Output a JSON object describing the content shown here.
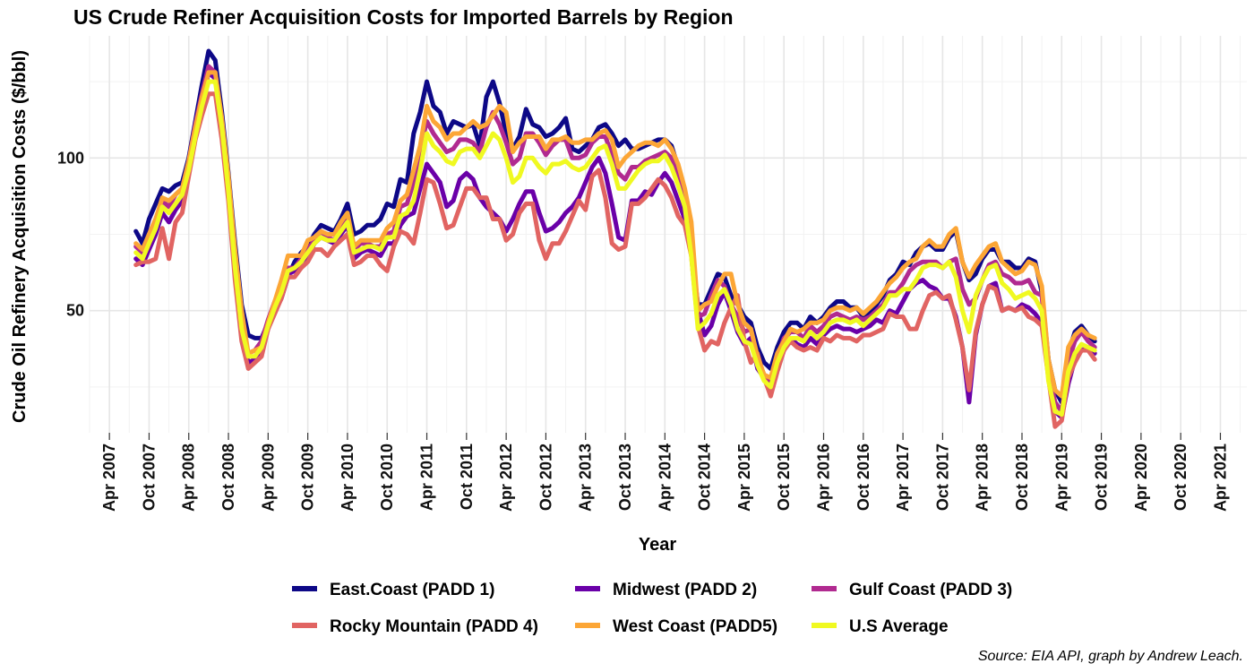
{
  "title": "US Crude Refiner Acquisition Costs for Imported Barrels by Region",
  "caption": "Source: EIA API, graph by Andrew Leach.",
  "chart_data": {
    "type": "line",
    "title": "US Crude Refiner Acquisition Costs for Imported Barrels by Region",
    "xlabel": "Year",
    "ylabel": "Crude Oil Refinery Acquisition Costs ($/bbl)",
    "x_ticks": [
      "Apr 2007",
      "Oct 2007",
      "Apr 2008",
      "Oct 2008",
      "Apr 2009",
      "Oct 2009",
      "Apr 2010",
      "Oct 2010",
      "Apr 2011",
      "Oct 2011",
      "Apr 2012",
      "Oct 2012",
      "Apr 2013",
      "Oct 2013",
      "Apr 2014",
      "Oct 2014",
      "Apr 2015",
      "Oct 2015",
      "Apr 2016",
      "Oct 2016",
      "Apr 2017",
      "Oct 2017",
      "Apr 2018",
      "Oct 2018",
      "Apr 2019",
      "Oct 2019",
      "Apr 2020",
      "Oct 2020",
      "Apr 2021"
    ],
    "y_ticks": [
      50,
      100
    ],
    "xlim": [
      "2007-01",
      "2021-08"
    ],
    "ylim": [
      10,
      140
    ],
    "grid": true,
    "legend_position": "bottom",
    "x_start": "2007-08",
    "x_step": "monthly",
    "series": [
      {
        "name": "East.Coast (PADD 1)",
        "color": "#0d0887",
        "values": [
          76,
          72,
          80,
          85,
          90,
          89,
          91,
          92,
          100,
          112,
          124,
          135,
          132,
          115,
          95,
          72,
          52,
          42,
          41,
          41,
          46,
          50,
          54,
          61,
          66,
          69,
          71,
          75,
          78,
          77,
          76,
          80,
          85,
          75,
          76,
          78,
          78,
          80,
          85,
          84,
          93,
          92,
          108,
          115,
          125,
          117,
          115,
          108,
          112,
          111,
          110,
          111,
          104,
          120,
          125,
          118,
          108,
          103,
          107,
          116,
          111,
          110,
          107,
          108,
          110,
          113,
          103,
          102,
          104,
          106,
          110,
          111,
          108,
          104,
          106,
          103,
          103,
          104,
          105,
          106,
          106,
          104,
          97,
          87,
          70,
          52,
          52,
          57,
          62,
          61,
          55,
          52,
          48,
          46,
          38,
          33,
          31,
          38,
          43,
          46,
          46,
          44,
          48,
          46,
          48,
          51,
          53,
          53,
          51,
          51,
          48,
          49,
          52,
          55,
          60,
          62,
          66,
          65,
          69,
          71,
          72,
          70,
          70,
          74,
          76,
          66,
          60,
          62,
          67,
          70,
          70,
          66,
          66,
          64,
          64,
          67,
          66,
          56,
          34,
          24,
          20,
          36,
          43,
          45,
          42,
          40
        ]
      },
      {
        "name": "Midwest (PADD 2)",
        "color": "#6a00a8",
        "values": [
          67,
          65,
          70,
          75,
          82,
          79,
          83,
          86,
          95,
          108,
          118,
          128,
          126,
          110,
          90,
          62,
          42,
          33,
          34,
          37,
          44,
          50,
          56,
          62,
          63,
          66,
          68,
          72,
          74,
          73,
          72,
          75,
          78,
          67,
          69,
          70,
          69,
          68,
          72,
          72,
          78,
          81,
          82,
          90,
          98,
          95,
          92,
          84,
          86,
          93,
          95,
          93,
          87,
          84,
          82,
          80,
          76,
          80,
          85,
          89,
          89,
          82,
          76,
          77,
          79,
          82,
          84,
          87,
          92,
          97,
          100,
          95,
          85,
          74,
          73,
          86,
          86,
          89,
          88,
          92,
          95,
          92,
          86,
          80,
          70,
          50,
          42,
          45,
          52,
          56,
          50,
          43,
          39,
          41,
          31,
          28,
          24,
          31,
          37,
          41,
          39,
          38,
          41,
          39,
          42,
          44,
          45,
          44,
          44,
          43,
          44,
          45,
          47,
          46,
          50,
          49,
          53,
          57,
          59,
          60,
          58,
          57,
          54,
          54,
          48,
          38,
          20,
          42,
          52,
          58,
          59,
          50,
          51,
          50,
          52,
          51,
          49,
          46,
          30,
          17,
          15,
          26,
          34,
          37,
          38,
          36
        ]
      },
      {
        "name": "Gulf Coast (PADD 3)",
        "color": "#b12a90",
        "values": [
          71,
          69,
          75,
          80,
          86,
          84,
          88,
          90,
          99,
          111,
          121,
          130,
          128,
          112,
          92,
          67,
          47,
          36,
          37,
          40,
          47,
          53,
          58,
          64,
          64,
          67,
          70,
          73,
          76,
          74,
          73,
          77,
          80,
          70,
          72,
          72,
          71,
          71,
          75,
          76,
          84,
          85,
          92,
          103,
          112,
          108,
          105,
          102,
          103,
          106,
          106,
          105,
          102,
          110,
          115,
          111,
          105,
          98,
          100,
          108,
          108,
          105,
          101,
          104,
          106,
          106,
          100,
          100,
          101,
          105,
          107,
          107,
          101,
          95,
          93,
          97,
          97,
          99,
          100,
          101,
          102,
          100,
          95,
          87,
          70,
          48,
          49,
          55,
          60,
          58,
          52,
          48,
          43,
          44,
          34,
          29,
          27,
          35,
          41,
          43,
          43,
          41,
          45,
          43,
          45,
          48,
          49,
          48,
          47,
          48,
          47,
          48,
          50,
          52,
          56,
          56,
          59,
          63,
          65,
          66,
          66,
          66,
          64,
          66,
          67,
          57,
          52,
          54,
          60,
          65,
          66,
          62,
          61,
          59,
          59,
          60,
          56,
          55,
          30,
          20,
          17,
          33,
          40,
          43,
          40,
          38
        ]
      },
      {
        "name": "Rocky Mountain (PADD 4)",
        "color": "#e16462",
        "values": [
          65,
          66,
          66,
          67,
          77,
          67,
          79,
          82,
          94,
          106,
          114,
          121,
          121,
          106,
          86,
          60,
          40,
          31,
          33,
          35,
          44,
          49,
          54,
          61,
          61,
          64,
          66,
          70,
          70,
          68,
          71,
          73,
          75,
          65,
          66,
          68,
          68,
          65,
          63,
          71,
          76,
          75,
          72,
          82,
          93,
          92,
          85,
          77,
          78,
          84,
          90,
          90,
          87,
          87,
          80,
          80,
          73,
          75,
          82,
          85,
          85,
          73,
          67,
          72,
          72,
          76,
          81,
          86,
          83,
          94,
          96,
          87,
          72,
          70,
          71,
          85,
          85,
          87,
          90,
          93,
          91,
          87,
          81,
          78,
          68,
          45,
          37,
          40,
          39,
          46,
          51,
          55,
          40,
          33,
          36,
          28,
          22,
          30,
          37,
          40,
          38,
          37,
          38,
          37,
          41,
          40,
          42,
          41,
          41,
          40,
          42,
          42,
          43,
          44,
          49,
          48,
          48,
          44,
          44,
          50,
          55,
          56,
          54,
          55,
          47,
          38,
          24,
          43,
          52,
          58,
          57,
          50,
          51,
          50,
          51,
          48,
          47,
          45,
          28,
          12,
          14,
          28,
          33,
          37,
          37,
          34
        ]
      },
      {
        "name": "West Coast (PADD5)",
        "color": "#fca636",
        "values": [
          72,
          70,
          75,
          80,
          87,
          86,
          88,
          90,
          99,
          110,
          120,
          128,
          128,
          113,
          94,
          70,
          50,
          36,
          37,
          38,
          46,
          53,
          60,
          68,
          68,
          68,
          73,
          74,
          76,
          75,
          75,
          79,
          82,
          71,
          73,
          73,
          73,
          73,
          77,
          79,
          86,
          88,
          96,
          104,
          117,
          112,
          110,
          106,
          108,
          108,
          110,
          112,
          110,
          111,
          114,
          117,
          115,
          102,
          105,
          107,
          107,
          107,
          103,
          106,
          106,
          107,
          105,
          105,
          106,
          106,
          108,
          109,
          106,
          97,
          100,
          102,
          104,
          105,
          105,
          104,
          106,
          103,
          98,
          90,
          79,
          50,
          52,
          53,
          58,
          62,
          62,
          52,
          46,
          44,
          35,
          29,
          28,
          36,
          40,
          44,
          43,
          44,
          46,
          46,
          47,
          50,
          51,
          51,
          50,
          51,
          49,
          51,
          53,
          56,
          59,
          61,
          64,
          66,
          67,
          71,
          73,
          71,
          71,
          75,
          77,
          66,
          61,
          65,
          68,
          71,
          72,
          66,
          64,
          62,
          63,
          66,
          65,
          58,
          34,
          24,
          22,
          38,
          42,
          44,
          42,
          41
        ]
      },
      {
        "name": "U.S Average",
        "color": "#f0f921",
        "values": [
          69,
          67,
          72,
          77,
          84,
          82,
          85,
          88,
          96,
          107,
          117,
          125,
          125,
          110,
          89,
          64,
          44,
          35,
          35,
          38,
          45,
          51,
          56,
          63,
          64,
          66,
          69,
          72,
          74,
          73,
          73,
          76,
          79,
          69,
          70,
          71,
          71,
          70,
          74,
          74,
          81,
          82,
          86,
          96,
          108,
          104,
          102,
          99,
          98,
          102,
          103,
          103,
          100,
          104,
          108,
          106,
          100,
          92,
          94,
          100,
          100,
          97,
          95,
          98,
          98,
          99,
          97,
          96,
          97,
          100,
          103,
          104,
          98,
          90,
          90,
          93,
          96,
          98,
          99,
          99,
          101,
          97,
          91,
          84,
          68,
          44,
          46,
          49,
          55,
          57,
          52,
          44,
          40,
          39,
          32,
          27,
          25,
          33,
          38,
          41,
          41,
          40,
          43,
          41,
          43,
          46,
          47,
          47,
          46,
          47,
          45,
          47,
          49,
          51,
          55,
          55,
          57,
          57,
          60,
          64,
          65,
          65,
          64,
          66,
          61,
          50,
          43,
          55,
          60,
          64,
          65,
          59,
          57,
          54,
          55,
          56,
          54,
          50,
          27,
          17,
          16,
          30,
          36,
          39,
          38,
          37
        ]
      }
    ]
  }
}
